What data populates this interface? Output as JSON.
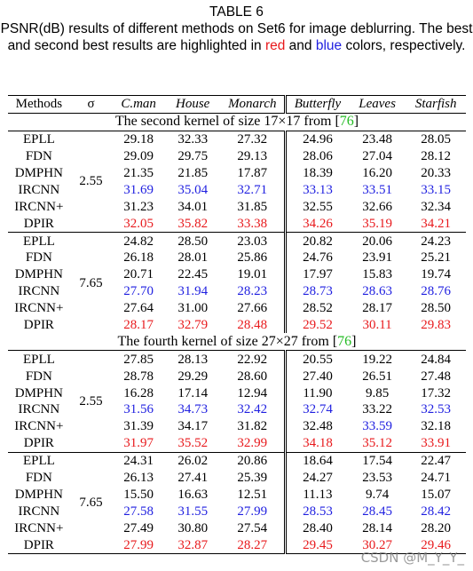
{
  "caption": {
    "label": "TABLE 6",
    "parts": [
      "PSNR(dB) results of different methods on Set6 for image deblurring. The best and second best results are highlighted in ",
      "red",
      " and ",
      "blue",
      " colors, respectively."
    ]
  },
  "table": {
    "header": [
      "Methods",
      "σ",
      "C.man",
      "House",
      "Monarch",
      "Butterfly",
      "Leaves",
      "Starfish"
    ],
    "sections": [
      {
        "title": "The second kernel of size 17×17 from [",
        "ref": "76",
        "close": "]",
        "ref_color": "#22bb22",
        "groups": [
          {
            "sigma": "2.55",
            "rows": [
              {
                "method": "EPLL",
                "values": [
                  "29.18",
                  "32.33",
                  "27.32",
                  "24.96",
                  "23.48",
                  "28.05"
                ],
                "colors": [
                  "#000",
                  "#000",
                  "#000",
                  "#000",
                  "#000",
                  "#000"
                ]
              },
              {
                "method": "FDN",
                "values": [
                  "29.09",
                  "29.75",
                  "29.13",
                  "28.06",
                  "27.04",
                  "28.12"
                ],
                "colors": [
                  "#000",
                  "#000",
                  "#000",
                  "#000",
                  "#000",
                  "#000"
                ]
              },
              {
                "method": "DMPHN",
                "values": [
                  "21.35",
                  "21.85",
                  "17.87",
                  "18.39",
                  "16.20",
                  "20.33"
                ],
                "colors": [
                  "#000",
                  "#000",
                  "#000",
                  "#000",
                  "#000",
                  "#000"
                ]
              },
              {
                "method": "IRCNN",
                "values": [
                  "31.69",
                  "35.04",
                  "32.71",
                  "33.13",
                  "33.51",
                  "33.15"
                ],
                "colors": [
                  "#1f1fe0",
                  "#1f1fe0",
                  "#1f1fe0",
                  "#1f1fe0",
                  "#1f1fe0",
                  "#1f1fe0"
                ]
              },
              {
                "method": "IRCNN+",
                "values": [
                  "31.23",
                  "34.01",
                  "31.85",
                  "32.55",
                  "32.66",
                  "32.34"
                ],
                "colors": [
                  "#000",
                  "#000",
                  "#000",
                  "#000",
                  "#000",
                  "#000"
                ]
              },
              {
                "method": "DPIR",
                "values": [
                  "32.05",
                  "35.82",
                  "33.38",
                  "34.26",
                  "35.19",
                  "34.21"
                ],
                "colors": [
                  "#e8191c",
                  "#e8191c",
                  "#e8191c",
                  "#e8191c",
                  "#e8191c",
                  "#e8191c"
                ]
              }
            ]
          },
          {
            "sigma": "7.65",
            "rows": [
              {
                "method": "EPLL",
                "values": [
                  "24.82",
                  "28.50",
                  "23.03",
                  "20.82",
                  "20.06",
                  "24.23"
                ],
                "colors": [
                  "#000",
                  "#000",
                  "#000",
                  "#000",
                  "#000",
                  "#000"
                ]
              },
              {
                "method": "FDN",
                "values": [
                  "26.18",
                  "28.01",
                  "25.86",
                  "24.76",
                  "23.91",
                  "25.21"
                ],
                "colors": [
                  "#000",
                  "#000",
                  "#000",
                  "#000",
                  "#000",
                  "#000"
                ]
              },
              {
                "method": "DMPHN",
                "values": [
                  "20.71",
                  "22.45",
                  "19.01",
                  "17.97",
                  "15.83",
                  "19.74"
                ],
                "colors": [
                  "#000",
                  "#000",
                  "#000",
                  "#000",
                  "#000",
                  "#000"
                ]
              },
              {
                "method": "IRCNN",
                "values": [
                  "27.70",
                  "31.94",
                  "28.23",
                  "28.73",
                  "28.63",
                  "28.76"
                ],
                "colors": [
                  "#1f1fe0",
                  "#1f1fe0",
                  "#1f1fe0",
                  "#1f1fe0",
                  "#1f1fe0",
                  "#1f1fe0"
                ]
              },
              {
                "method": "IRCNN+",
                "values": [
                  "27.64",
                  "31.00",
                  "27.66",
                  "28.52",
                  "28.17",
                  "28.50"
                ],
                "colors": [
                  "#000",
                  "#000",
                  "#000",
                  "#000",
                  "#000",
                  "#000"
                ]
              },
              {
                "method": "DPIR",
                "values": [
                  "28.17",
                  "32.79",
                  "28.48",
                  "29.52",
                  "30.11",
                  "29.83"
                ],
                "colors": [
                  "#e8191c",
                  "#e8191c",
                  "#e8191c",
                  "#e8191c",
                  "#e8191c",
                  "#e8191c"
                ]
              }
            ]
          }
        ]
      },
      {
        "title": "The fourth kernel of size 27×27 from [",
        "ref": "76",
        "close": "]",
        "ref_color": "#22bb22",
        "groups": [
          {
            "sigma": "2.55",
            "rows": [
              {
                "method": "EPLL",
                "values": [
                  "27.85",
                  "28.13",
                  "22.92",
                  "20.55",
                  "19.22",
                  "24.84"
                ],
                "colors": [
                  "#000",
                  "#000",
                  "#000",
                  "#000",
                  "#000",
                  "#000"
                ]
              },
              {
                "method": "FDN",
                "values": [
                  "28.78",
                  "29.29",
                  "28.60",
                  "27.40",
                  "26.51",
                  "27.48"
                ],
                "colors": [
                  "#000",
                  "#000",
                  "#000",
                  "#000",
                  "#000",
                  "#000"
                ]
              },
              {
                "method": "DMPHN",
                "values": [
                  "16.28",
                  "17.14",
                  "12.94",
                  "11.90",
                  "9.85",
                  "17.32"
                ],
                "colors": [
                  "#000",
                  "#000",
                  "#000",
                  "#000",
                  "#000",
                  "#000"
                ]
              },
              {
                "method": "IRCNN",
                "values": [
                  "31.56",
                  "34.73",
                  "32.42",
                  "32.74",
                  "33.22",
                  "32.53"
                ],
                "colors": [
                  "#1f1fe0",
                  "#1f1fe0",
                  "#1f1fe0",
                  "#1f1fe0",
                  "#000",
                  "#1f1fe0"
                ]
              },
              {
                "method": "IRCNN+",
                "values": [
                  "31.39",
                  "34.17",
                  "31.82",
                  "32.48",
                  "33.59",
                  "32.18"
                ],
                "colors": [
                  "#000",
                  "#000",
                  "#000",
                  "#000",
                  "#1f1fe0",
                  "#000"
                ]
              },
              {
                "method": "DPIR",
                "values": [
                  "31.97",
                  "35.52",
                  "32.99",
                  "34.18",
                  "35.12",
                  "33.91"
                ],
                "colors": [
                  "#e8191c",
                  "#e8191c",
                  "#e8191c",
                  "#e8191c",
                  "#e8191c",
                  "#e8191c"
                ]
              }
            ]
          },
          {
            "sigma": "7.65",
            "rows": [
              {
                "method": "EPLL",
                "values": [
                  "24.31",
                  "26.02",
                  "20.86",
                  "18.64",
                  "17.54",
                  "22.47"
                ],
                "colors": [
                  "#000",
                  "#000",
                  "#000",
                  "#000",
                  "#000",
                  "#000"
                ]
              },
              {
                "method": "FDN",
                "values": [
                  "26.13",
                  "27.41",
                  "25.39",
                  "24.27",
                  "23.53",
                  "24.71"
                ],
                "colors": [
                  "#000",
                  "#000",
                  "#000",
                  "#000",
                  "#000",
                  "#000"
                ]
              },
              {
                "method": "DMPHN",
                "values": [
                  "15.50",
                  "16.63",
                  "12.51",
                  "11.13",
                  "9.74",
                  "15.07"
                ],
                "colors": [
                  "#000",
                  "#000",
                  "#000",
                  "#000",
                  "#000",
                  "#000"
                ]
              },
              {
                "method": "IRCNN",
                "values": [
                  "27.58",
                  "31.55",
                  "27.99",
                  "28.53",
                  "28.45",
                  "28.42"
                ],
                "colors": [
                  "#1f1fe0",
                  "#1f1fe0",
                  "#1f1fe0",
                  "#1f1fe0",
                  "#1f1fe0",
                  "#1f1fe0"
                ]
              },
              {
                "method": "IRCNN+",
                "values": [
                  "27.49",
                  "30.80",
                  "27.54",
                  "28.40",
                  "28.14",
                  "28.20"
                ],
                "colors": [
                  "#000",
                  "#000",
                  "#000",
                  "#000",
                  "#000",
                  "#000"
                ]
              },
              {
                "method": "DPIR",
                "values": [
                  "27.99",
                  "32.87",
                  "28.27",
                  "29.45",
                  "30.27",
                  "29.46"
                ],
                "colors": [
                  "#e8191c",
                  "#e8191c",
                  "#e8191c",
                  "#e8191c",
                  "#e8191c",
                  "#e8191c"
                ]
              }
            ]
          }
        ]
      }
    ]
  },
  "watermark": "CSDN @M_Y_Y_"
}
